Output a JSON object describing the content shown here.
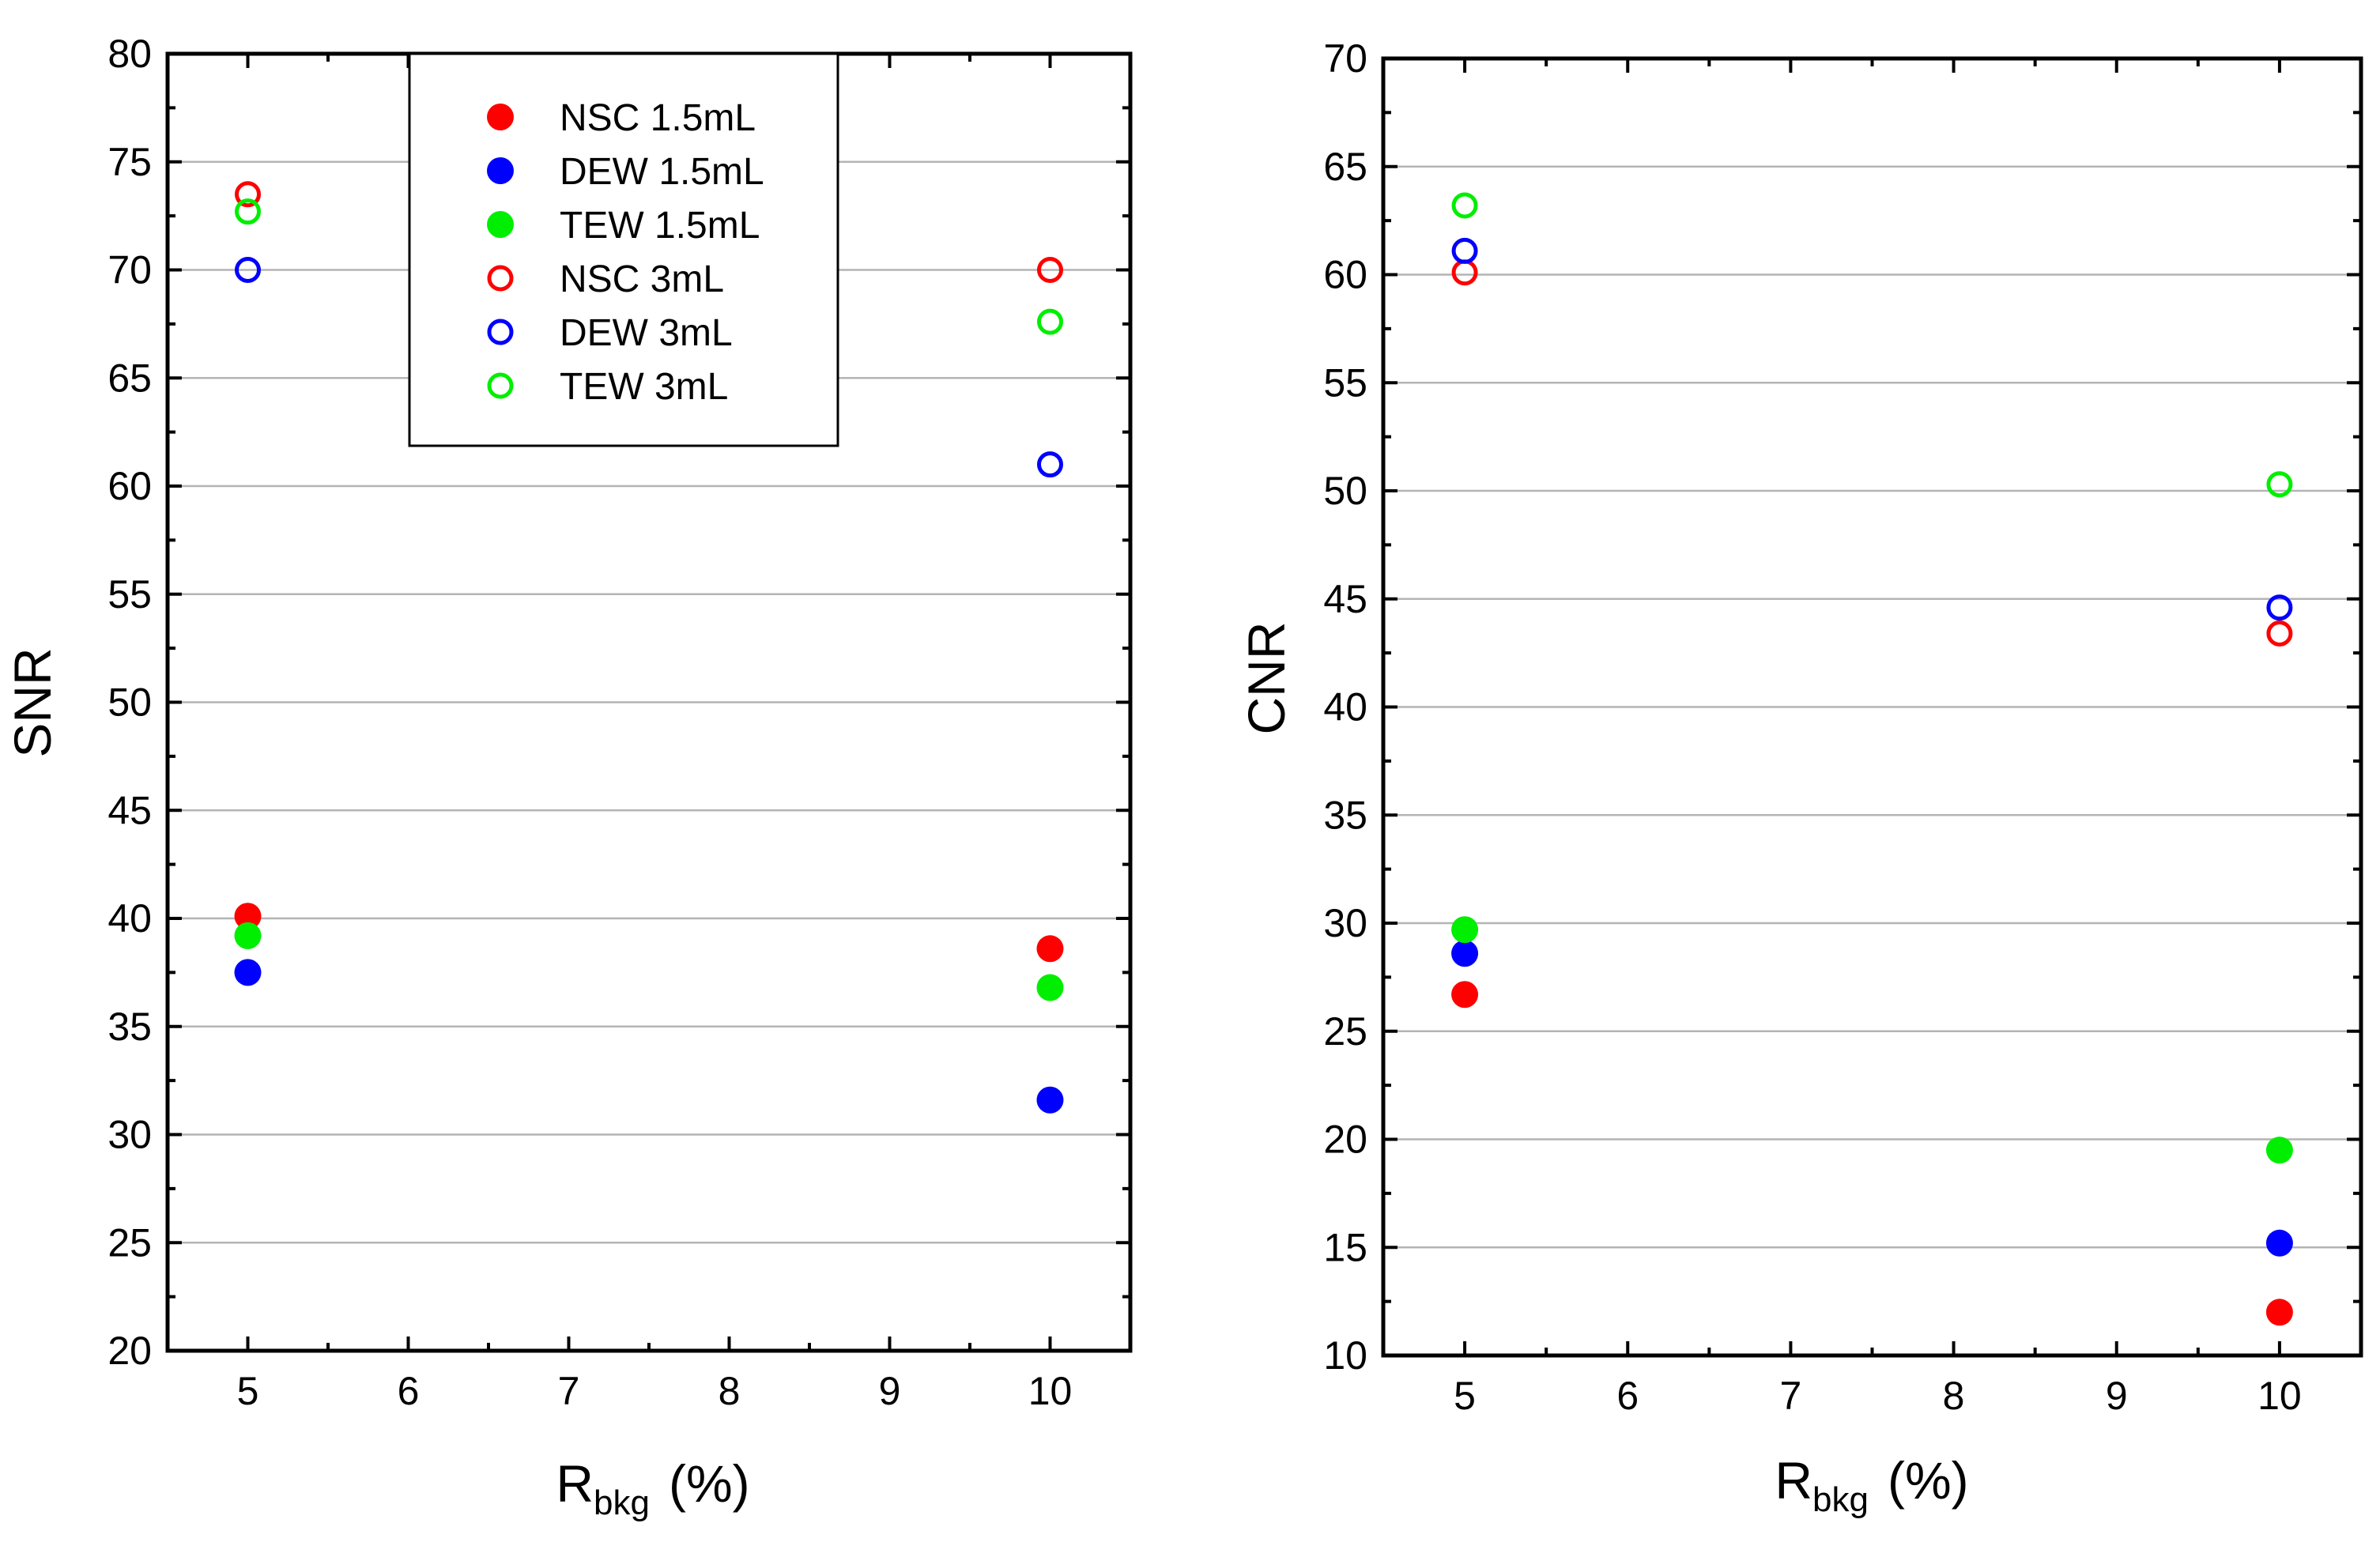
{
  "chart_data": [
    {
      "type": "scatter",
      "panel": "left",
      "ylabel": "SNR",
      "xlabel": {
        "main": "R",
        "sub": "bkg",
        "unit": "(%)"
      },
      "xlim": [
        4.5,
        10.5
      ],
      "ylim": [
        20,
        80
      ],
      "x_ticks": [
        5,
        6,
        7,
        8,
        9,
        10
      ],
      "y_ticks": [
        20,
        25,
        30,
        35,
        40,
        45,
        50,
        55,
        60,
        65,
        70,
        75,
        80
      ],
      "grid": "horizontal",
      "legend": {
        "placement": "top-center",
        "entries": [
          "NSC 1.5mL",
          "DEW 1.5mL",
          "TEW 1.5mL",
          "NSC 3mL",
          "DEW 3mL",
          "TEW 3mL"
        ]
      },
      "series": [
        {
          "name": "NSC 1.5mL",
          "color": "#ff0000",
          "marker": "filled",
          "x": [
            5,
            10
          ],
          "values": [
            40.1,
            38.6
          ]
        },
        {
          "name": "DEW 1.5mL",
          "color": "#0000ff",
          "marker": "filled",
          "x": [
            5,
            10
          ],
          "values": [
            37.5,
            31.6
          ]
        },
        {
          "name": "TEW 1.5mL",
          "color": "#00ee00",
          "marker": "filled",
          "x": [
            5,
            10
          ],
          "values": [
            39.2,
            36.8
          ]
        },
        {
          "name": "NSC 3mL",
          "color": "#ff0000",
          "marker": "open",
          "x": [
            5,
            10
          ],
          "values": [
            73.5,
            70.0
          ]
        },
        {
          "name": "DEW 3mL",
          "color": "#0000ff",
          "marker": "open",
          "x": [
            5,
            10
          ],
          "values": [
            70.0,
            61.0
          ]
        },
        {
          "name": "TEW 3mL",
          "color": "#00ee00",
          "marker": "open",
          "x": [
            5,
            10
          ],
          "values": [
            72.7,
            67.6
          ]
        }
      ]
    },
    {
      "type": "scatter",
      "panel": "right",
      "ylabel": "CNR",
      "xlabel": {
        "main": "R",
        "sub": "bkg",
        "unit": "(%)"
      },
      "xlim": [
        4.5,
        10.5
      ],
      "ylim": [
        10,
        70
      ],
      "x_ticks": [
        5,
        6,
        7,
        8,
        9,
        10
      ],
      "y_ticks": [
        10,
        15,
        20,
        25,
        30,
        35,
        40,
        45,
        50,
        55,
        60,
        65,
        70
      ],
      "grid": "horizontal",
      "series": [
        {
          "name": "NSC 1.5mL",
          "color": "#ff0000",
          "marker": "filled",
          "x": [
            5,
            10
          ],
          "values": [
            26.7,
            12.0
          ]
        },
        {
          "name": "DEW 1.5mL",
          "color": "#0000ff",
          "marker": "filled",
          "x": [
            5,
            10
          ],
          "values": [
            28.6,
            15.2
          ]
        },
        {
          "name": "TEW 1.5mL",
          "color": "#00ee00",
          "marker": "filled",
          "x": [
            5,
            10
          ],
          "values": [
            29.7,
            19.5
          ]
        },
        {
          "name": "NSC 3mL",
          "color": "#ff0000",
          "marker": "open",
          "x": [
            5,
            10
          ],
          "values": [
            60.1,
            43.4
          ]
        },
        {
          "name": "DEW 3mL",
          "color": "#0000ff",
          "marker": "open",
          "x": [
            5,
            10
          ],
          "values": [
            61.1,
            44.6
          ]
        },
        {
          "name": "TEW 3mL",
          "color": "#00ee00",
          "marker": "open",
          "x": [
            5,
            10
          ],
          "values": [
            63.2,
            50.3
          ]
        }
      ]
    }
  ]
}
